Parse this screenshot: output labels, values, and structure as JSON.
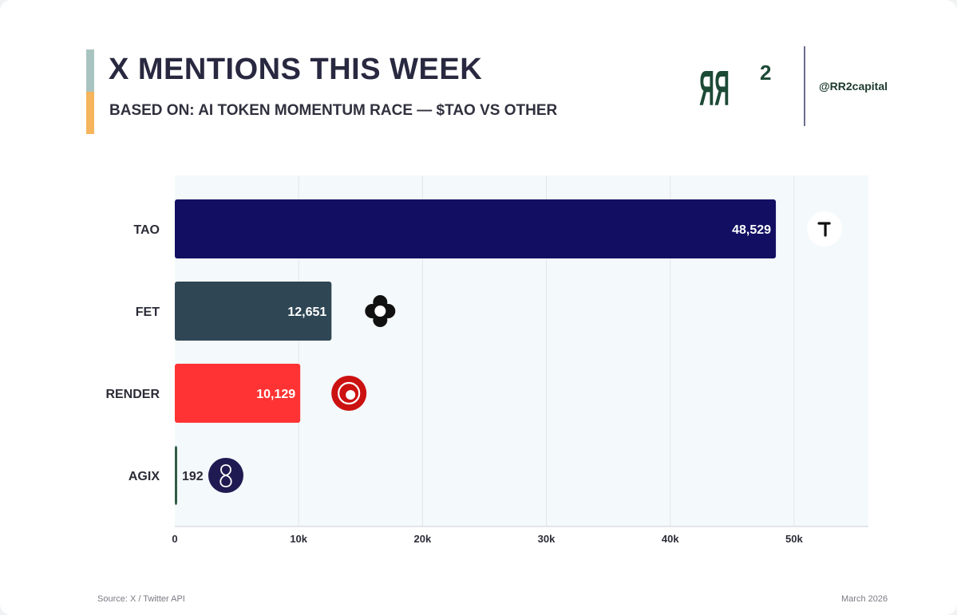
{
  "header": {
    "title": "X MENTIONS THIS WEEK",
    "subtitle": "BASED ON: AI TOKEN MOMENTUM RACE — $TAO VS OTHER",
    "logo_text": "RR",
    "logo_sup": "2",
    "handle": "@RR2capital"
  },
  "footer": {
    "source": "Source: X / Twitter API",
    "date": "March 2026"
  },
  "colors": {
    "tao": "#120f62",
    "fet": "#2f4654",
    "render": "#ff3333",
    "agix": "#2e5c44",
    "plot_bg": "#f4f9fc",
    "brand_green": "#1c4a36"
  },
  "icons": [
    "bittensor-tao-icon",
    "fetch-ai-icon",
    "render-icon",
    "singularitynet-icon"
  ],
  "chart_data": {
    "type": "bar",
    "orientation": "horizontal",
    "title": "X MENTIONS THIS WEEK",
    "categories": [
      "TAO",
      "FET",
      "RENDER",
      "AGIX"
    ],
    "values": [
      48529,
      12651,
      10129,
      192
    ],
    "value_labels": [
      "48,529",
      "12,651",
      "10,129",
      "192"
    ],
    "xlim": [
      0,
      56000
    ],
    "xticks": [
      0,
      10000,
      20000,
      30000,
      40000,
      50000
    ],
    "xtick_labels": [
      "0",
      "10k",
      "20k",
      "30k",
      "40k",
      "50k"
    ],
    "grid": true,
    "legend": "none"
  }
}
